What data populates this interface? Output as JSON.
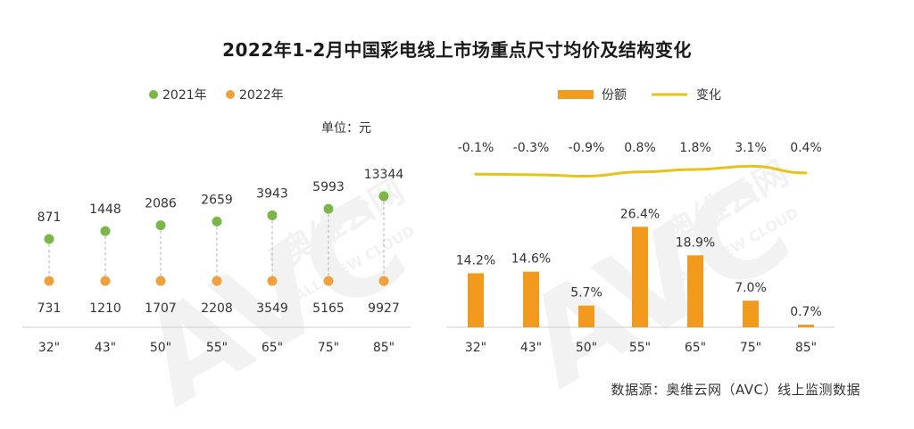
{
  "title": "2022年1-2月中国彩电线上市场重点尺寸均价及结构变化",
  "source": "数据源：奥维云网（AVC）线上监测数据",
  "watermark": {
    "text": "AVC",
    "sub": "奥维云网",
    "sub2": "ALL VIEW CLOUD"
  },
  "colors": {
    "green": "#7ab648",
    "orange": "#f0a03c",
    "bar": "#f29a1e",
    "line": "#e8c21a",
    "axis": "#cccccc",
    "dash": "#bbbbbb"
  },
  "chart_data": [
    {
      "type": "scatter",
      "categories": [
        "32\"",
        "43\"",
        "50\"",
        "55\"",
        "65\"",
        "75\"",
        "85\""
      ],
      "unit_label": "单位：元",
      "series": [
        {
          "name": "2021年",
          "values": [
            871,
            1448,
            2086,
            2659,
            3943,
            5993,
            13344
          ]
        },
        {
          "name": "2022年",
          "values": [
            731,
            1210,
            1707,
            2208,
            3549,
            5165,
            9927
          ]
        }
      ]
    },
    {
      "type": "bar",
      "categories": [
        "32\"",
        "43\"",
        "50\"",
        "55\"",
        "65\"",
        "75\"",
        "85\""
      ],
      "series": [
        {
          "name": "份额",
          "values": [
            14.2,
            14.6,
            5.7,
            26.4,
            18.9,
            7.0,
            0.7
          ],
          "labels": [
            "14.2%",
            "14.6%",
            "5.7%",
            "26.4%",
            "18.9%",
            "7.0%",
            "0.7%"
          ]
        },
        {
          "name": "变化",
          "values": [
            -0.1,
            -0.3,
            -0.9,
            0.8,
            1.8,
            3.1,
            0.4
          ],
          "labels": [
            "-0.1%",
            "-0.3%",
            "-0.9%",
            "0.8%",
            "1.8%",
            "3.1%",
            "0.4%"
          ]
        }
      ]
    }
  ]
}
